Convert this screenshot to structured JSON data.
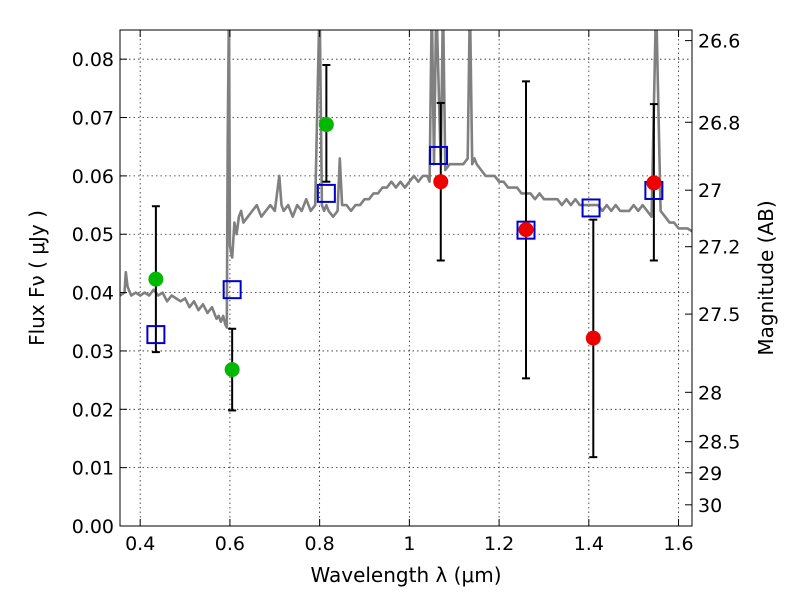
{
  "chart_data": {
    "type": "scatter",
    "title": "",
    "xlabel": "Wavelength  λ (μm)",
    "ylabel": "Flux  Fν ( μJy )",
    "ylabel_right": "Magnitude (AB)",
    "xlim": [
      0.355,
      1.63
    ],
    "ylim": [
      0.0,
      0.085
    ],
    "grid": true,
    "legend": "none",
    "x_ticks": [
      {
        "value": 0.4,
        "label": "0.4"
      },
      {
        "value": 0.6,
        "label": "0.6"
      },
      {
        "value": 0.8,
        "label": "0.8"
      },
      {
        "value": 1.0,
        "label": "1"
      },
      {
        "value": 1.2,
        "label": "1.2"
      },
      {
        "value": 1.4,
        "label": "1.4"
      },
      {
        "value": 1.6,
        "label": "1.6"
      }
    ],
    "y_ticks": [
      {
        "value": 0.0,
        "label": "0.00"
      },
      {
        "value": 0.01,
        "label": "0.01"
      },
      {
        "value": 0.02,
        "label": "0.02"
      },
      {
        "value": 0.03,
        "label": "0.03"
      },
      {
        "value": 0.04,
        "label": "0.04"
      },
      {
        "value": 0.05,
        "label": "0.05"
      },
      {
        "value": 0.06,
        "label": "0.06"
      },
      {
        "value": 0.07,
        "label": "0.07"
      },
      {
        "value": 0.08,
        "label": "0.08"
      }
    ],
    "right_ticks": [
      {
        "mag": 26.6,
        "label": "26.6"
      },
      {
        "mag": 26.8,
        "label": "26.8"
      },
      {
        "mag": 27.0,
        "label": "27"
      },
      {
        "mag": 27.2,
        "label": "27.2"
      },
      {
        "mag": 27.5,
        "label": "27.5"
      },
      {
        "mag": 28.0,
        "label": "28"
      },
      {
        "mag": 28.5,
        "label": "28.5"
      },
      {
        "mag": 29.0,
        "label": "29"
      },
      {
        "mag": 30.0,
        "label": "30"
      }
    ],
    "colors": {
      "spectrum": "#808080",
      "model": "#0000cc",
      "green": "#00b800",
      "red": "#ee0000",
      "errorbar": "#000000"
    },
    "series": [
      {
        "kind": "spectrum-line",
        "x": [
          0.355,
          0.365,
          0.368,
          0.372,
          0.38,
          0.39,
          0.4,
          0.41,
          0.42,
          0.43,
          0.44,
          0.45,
          0.46,
          0.47,
          0.48,
          0.49,
          0.5,
          0.51,
          0.52,
          0.53,
          0.54,
          0.55,
          0.56,
          0.57,
          0.575,
          0.58,
          0.585,
          0.59,
          0.593,
          0.595,
          0.598,
          0.6,
          0.605,
          0.61,
          0.615,
          0.62,
          0.625,
          0.63,
          0.64,
          0.65,
          0.66,
          0.67,
          0.68,
          0.69,
          0.7,
          0.71,
          0.715,
          0.72,
          0.73,
          0.74,
          0.75,
          0.76,
          0.77,
          0.78,
          0.79,
          0.8,
          0.805,
          0.81,
          0.815,
          0.82,
          0.83,
          0.84,
          0.845,
          0.85,
          0.86,
          0.87,
          0.88,
          0.89,
          0.9,
          0.91,
          0.92,
          0.93,
          0.94,
          0.95,
          0.96,
          0.97,
          0.98,
          0.99,
          1.0,
          1.01,
          1.02,
          1.03,
          1.04,
          1.045,
          1.05,
          1.055,
          1.06,
          1.07,
          1.075,
          1.08,
          1.09,
          1.1,
          1.11,
          1.12,
          1.13,
          1.135,
          1.14,
          1.145,
          1.15,
          1.16,
          1.17,
          1.18,
          1.19,
          1.2,
          1.21,
          1.22,
          1.23,
          1.24,
          1.25,
          1.26,
          1.27,
          1.28,
          1.29,
          1.3,
          1.31,
          1.32,
          1.33,
          1.34,
          1.35,
          1.36,
          1.37,
          1.38,
          1.39,
          1.4,
          1.41,
          1.42,
          1.43,
          1.44,
          1.45,
          1.46,
          1.47,
          1.48,
          1.49,
          1.5,
          1.51,
          1.52,
          1.53,
          1.54,
          1.55,
          1.56,
          1.57,
          1.58,
          1.59,
          1.6,
          1.61,
          1.62,
          1.63
        ],
        "y": [
          0.0395,
          0.04,
          0.0435,
          0.041,
          0.0395,
          0.04,
          0.0395,
          0.04,
          0.0395,
          0.0405,
          0.0395,
          0.04,
          0.0385,
          0.0395,
          0.039,
          0.0385,
          0.039,
          0.0375,
          0.0385,
          0.037,
          0.038,
          0.0365,
          0.0375,
          0.0355,
          0.036,
          0.035,
          0.036,
          0.0345,
          0.034,
          0.066,
          0.09,
          0.048,
          0.046,
          0.052,
          0.05,
          0.053,
          0.054,
          0.052,
          0.053,
          0.054,
          0.055,
          0.053,
          0.054,
          0.055,
          0.054,
          0.06,
          0.055,
          0.054,
          0.055,
          0.053,
          0.055,
          0.054,
          0.056,
          0.054,
          0.055,
          0.09,
          0.055,
          0.054,
          0.055,
          0.054,
          0.053,
          0.054,
          0.063,
          0.055,
          0.055,
          0.054,
          0.055,
          0.055,
          0.056,
          0.056,
          0.057,
          0.057,
          0.058,
          0.058,
          0.059,
          0.058,
          0.059,
          0.058,
          0.059,
          0.06,
          0.059,
          0.06,
          0.06,
          0.059,
          0.09,
          0.062,
          0.09,
          0.062,
          0.09,
          0.061,
          0.062,
          0.062,
          0.062,
          0.062,
          0.063,
          0.09,
          0.062,
          0.063,
          0.062,
          0.061,
          0.06,
          0.06,
          0.06,
          0.059,
          0.059,
          0.058,
          0.058,
          0.058,
          0.057,
          0.057,
          0.057,
          0.056,
          0.057,
          0.056,
          0.056,
          0.056,
          0.056,
          0.055,
          0.056,
          0.055,
          0.056,
          0.055,
          0.055,
          0.055,
          0.055,
          0.055,
          0.054,
          0.055,
          0.054,
          0.055,
          0.054,
          0.054,
          0.054,
          0.055,
          0.054,
          0.055,
          0.054,
          0.053,
          0.09,
          0.054,
          0.053,
          0.052,
          0.052,
          0.051,
          0.051,
          0.051,
          0.0505
        ]
      },
      {
        "kind": "model-squares",
        "x": [
          0.435,
          0.605,
          0.815,
          1.065,
          1.26,
          1.405,
          1.545
        ],
        "y": [
          0.0328,
          0.0405,
          0.057,
          0.0635,
          0.0507,
          0.0545,
          0.0575
        ]
      },
      {
        "kind": "green-points",
        "x": [
          0.435,
          0.605,
          0.815
        ],
        "y": [
          0.0423,
          0.0268,
          0.0688
        ],
        "yerr_low": [
          0.0298,
          0.0198,
          0.059
        ],
        "yerr_high": [
          0.0548,
          0.0338,
          0.079
        ]
      },
      {
        "kind": "red-points",
        "x": [
          1.07,
          1.26,
          1.41,
          1.545
        ],
        "y": [
          0.059,
          0.0508,
          0.0322,
          0.0588
        ],
        "yerr_low": [
          0.0455,
          0.0253,
          0.0118,
          0.0455
        ],
        "yerr_high": [
          0.0725,
          0.0762,
          0.0525,
          0.0723
        ]
      }
    ]
  }
}
